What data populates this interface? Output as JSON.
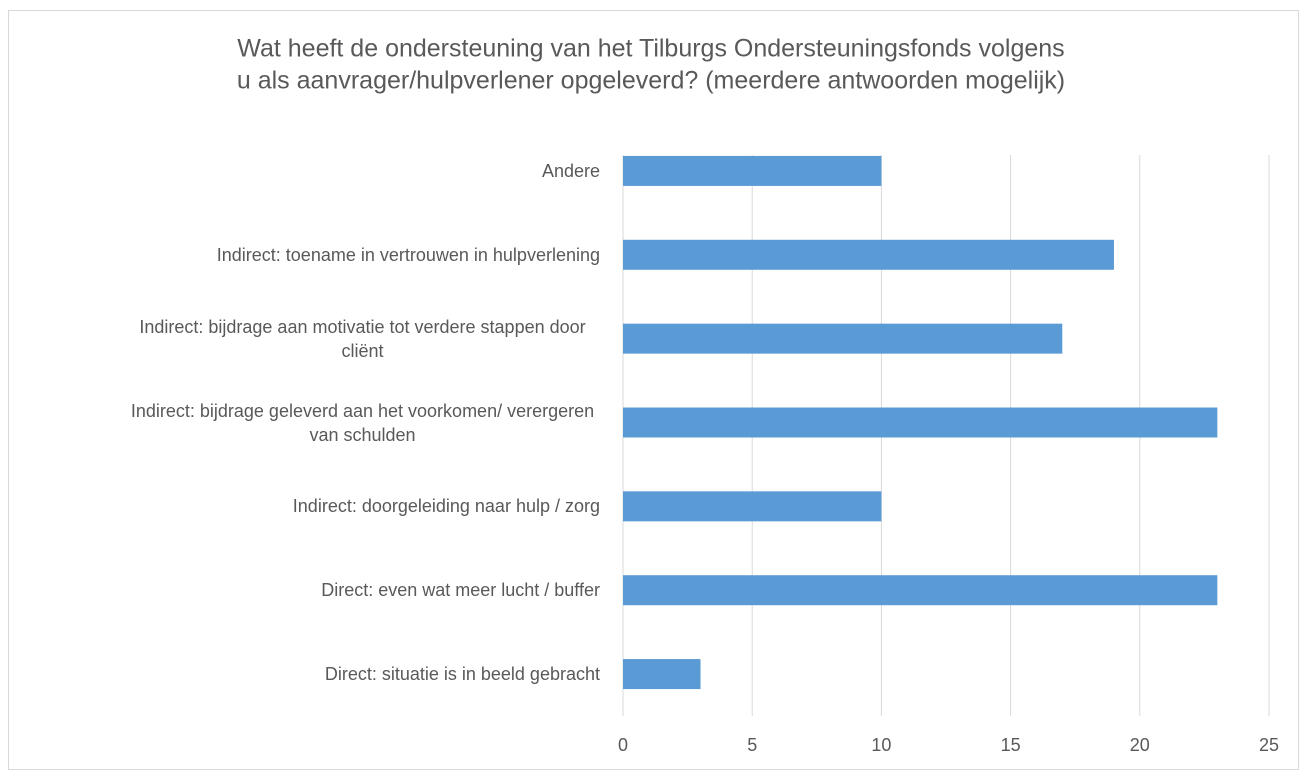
{
  "chart_data": {
    "type": "barh",
    "title": [
      "Wat heeft de ondersteuning van het Tilburgs Ondersteuningsfonds volgens",
      "u als aanvrager/hulpverlener opgeleverd? (meerdere antwoorden mogelijk)"
    ],
    "categories": [
      "Andere",
      "Indirect: toename in vertrouwen in hulpverlening",
      "Indirect: bijdrage aan motivatie tot verdere stappen door cliënt",
      "Indirect: bijdrage geleverd aan het voorkomen/ verergeren van schulden",
      "Indirect: doorgeleiding naar hulp / zorg",
      "Direct: even wat meer lucht / buffer",
      "Direct: situatie is in beeld gebracht"
    ],
    "values": [
      10,
      19,
      17,
      23,
      10,
      23,
      3
    ],
    "color": "#5b9bd5",
    "xlim": [
      0,
      25
    ],
    "xticks": [
      0,
      5,
      10,
      15,
      20,
      25
    ],
    "grid": true
  }
}
